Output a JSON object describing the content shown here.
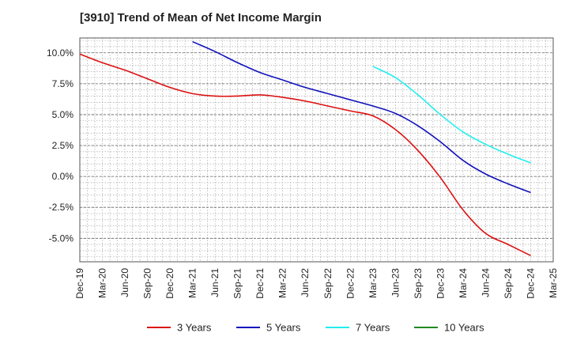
{
  "chart_data": {
    "type": "line",
    "title": "[3910]  Trend of Mean of Net Income Margin",
    "xlabel": "",
    "ylabel": "",
    "x_ticks": [
      "Dec-19",
      "Mar-20",
      "Jun-20",
      "Sep-20",
      "Dec-20",
      "Mar-21",
      "Jun-21",
      "Sep-21",
      "Dec-21",
      "Mar-22",
      "Jun-22",
      "Sep-22",
      "Dec-22",
      "Mar-23",
      "Jun-23",
      "Sep-23",
      "Dec-23",
      "Mar-24",
      "Jun-24",
      "Sep-24",
      "Dec-24",
      "Mar-25"
    ],
    "y_ticks": [
      "10.0%",
      "7.5%",
      "5.0%",
      "2.5%",
      "0.0%",
      "-2.5%",
      "-5.0%"
    ],
    "y_tick_values": [
      10.0,
      7.5,
      5.0,
      2.5,
      0.0,
      -2.5,
      -5.0
    ],
    "ylim": [
      -6.9,
      11.2
    ],
    "grid": true,
    "legend_position": "bottom",
    "series": [
      {
        "name": "3 Years",
        "color": "#dd1111",
        "x": [
          "Dec-19",
          "Mar-20",
          "Jun-20",
          "Sep-20",
          "Dec-20",
          "Mar-21",
          "Jun-21",
          "Sep-21",
          "Dec-21",
          "Mar-22",
          "Jun-22",
          "Sep-22",
          "Dec-22",
          "Mar-23",
          "Jun-23",
          "Sep-23",
          "Dec-23",
          "Mar-24",
          "Jun-24",
          "Sep-24",
          "Dec-24"
        ],
        "values": [
          9.9,
          9.2,
          8.6,
          7.9,
          7.2,
          6.7,
          6.5,
          6.5,
          6.6,
          6.4,
          6.1,
          5.7,
          5.3,
          4.9,
          3.8,
          2.1,
          -0.1,
          -2.7,
          -4.6,
          -5.5,
          -6.4
        ]
      },
      {
        "name": "5 Years",
        "color": "#1111bb",
        "x": [
          "Mar-21",
          "Jun-21",
          "Sep-21",
          "Dec-21",
          "Mar-22",
          "Jun-22",
          "Sep-22",
          "Dec-22",
          "Mar-23",
          "Jun-23",
          "Sep-23",
          "Dec-23",
          "Mar-24",
          "Jun-24",
          "Sep-24",
          "Dec-24"
        ],
        "values": [
          10.9,
          10.1,
          9.2,
          8.4,
          7.8,
          7.2,
          6.7,
          6.2,
          5.7,
          5.1,
          4.1,
          2.8,
          1.3,
          0.2,
          -0.6,
          -1.3
        ]
      },
      {
        "name": "7 Years",
        "color": "#22eeee",
        "x": [
          "Mar-23",
          "Jun-23",
          "Sep-23",
          "Dec-23",
          "Mar-24",
          "Jun-24",
          "Sep-24",
          "Dec-24"
        ],
        "values": [
          8.9,
          8.0,
          6.6,
          5.0,
          3.6,
          2.6,
          1.8,
          1.1
        ]
      },
      {
        "name": "10 Years",
        "color": "#228822",
        "x": [],
        "values": []
      }
    ]
  }
}
